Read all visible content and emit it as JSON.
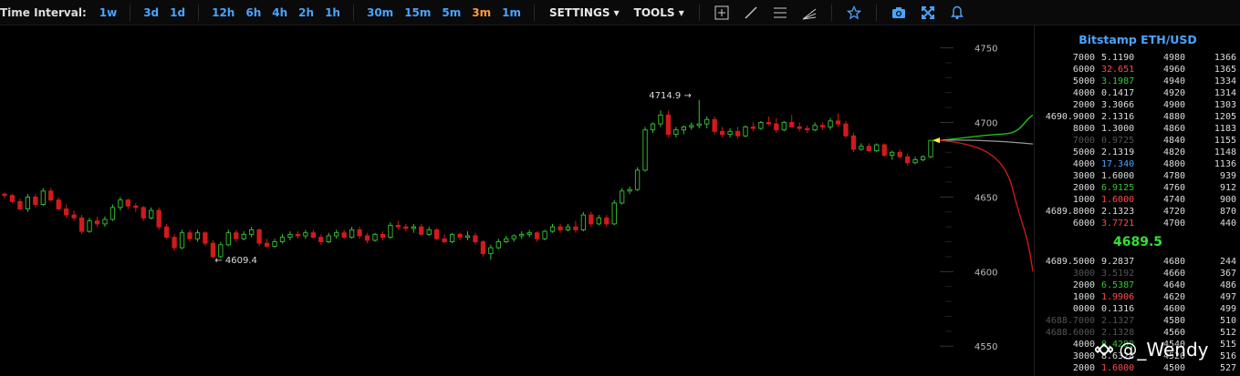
{
  "toolbar": {
    "label": "Time Interval:",
    "intervals": [
      "1w",
      "3d",
      "1d",
      "12h",
      "6h",
      "4h",
      "2h",
      "1h",
      "30m",
      "15m",
      "5m",
      "3m",
      "1m"
    ],
    "active_interval": "3m",
    "settings": "SETTINGS",
    "tools": "TOOLS",
    "tool_icons": [
      "crosshair-icon",
      "trendline-icon",
      "horizontal-lines-icon",
      "fan-icon",
      "star-icon",
      "camera-icon",
      "fullscreen-icon",
      "bell-icon"
    ]
  },
  "colors": {
    "up": "#35c435",
    "down": "#d11a1a",
    "accent": "#4aa3ff",
    "active": "#ff9a3c"
  },
  "chart_data": {
    "type": "candlestick",
    "y_ticks": [
      4750,
      4700,
      4650,
      4600,
      4550
    ],
    "ylim": [
      4530,
      4765
    ],
    "annotations": [
      {
        "text": "4714.9 →",
        "value": 4714.9,
        "kind": "high"
      },
      {
        "text": "← 4609.4",
        "value": 4609.4,
        "kind": "low"
      }
    ],
    "candles": [
      [
        4652,
        4653,
        4649,
        4651
      ],
      [
        4651,
        4652,
        4646,
        4647
      ],
      [
        4647,
        4649,
        4641,
        4642
      ],
      [
        4642,
        4652,
        4640,
        4650
      ],
      [
        4650,
        4652,
        4643,
        4645
      ],
      [
        4645,
        4656,
        4644,
        4654
      ],
      [
        4654,
        4656,
        4647,
        4648
      ],
      [
        4648,
        4650,
        4641,
        4642
      ],
      [
        4642,
        4645,
        4636,
        4638
      ],
      [
        4638,
        4641,
        4634,
        4636
      ],
      [
        4636,
        4638,
        4625,
        4627
      ],
      [
        4627,
        4636,
        4626,
        4634
      ],
      [
        4634,
        4637,
        4630,
        4632
      ],
      [
        4632,
        4637,
        4630,
        4635
      ],
      [
        4635,
        4645,
        4634,
        4643
      ],
      [
        4643,
        4650,
        4641,
        4648
      ],
      [
        4648,
        4649,
        4642,
        4644
      ],
      [
        4644,
        4646,
        4640,
        4643
      ],
      [
        4643,
        4644,
        4634,
        4636
      ],
      [
        4636,
        4643,
        4635,
        4641
      ],
      [
        4641,
        4643,
        4628,
        4630
      ],
      [
        4630,
        4632,
        4622,
        4623
      ],
      [
        4623,
        4625,
        4614,
        4616
      ],
      [
        4616,
        4628,
        4615,
        4626
      ],
      [
        4626,
        4628,
        4620,
        4622
      ],
      [
        4622,
        4628,
        4620,
        4626
      ],
      [
        4626,
        4627,
        4617,
        4619
      ],
      [
        4619,
        4621,
        4609,
        4610
      ],
      [
        4610,
        4620,
        4609,
        4618
      ],
      [
        4618,
        4628,
        4617,
        4626
      ],
      [
        4626,
        4628,
        4620,
        4622
      ],
      [
        4622,
        4627,
        4621,
        4625
      ],
      [
        4625,
        4630,
        4623,
        4628
      ],
      [
        4628,
        4629,
        4617,
        4619
      ],
      [
        4619,
        4622,
        4616,
        4617
      ],
      [
        4617,
        4622,
        4616,
        4620
      ],
      [
        4620,
        4625,
        4619,
        4623
      ],
      [
        4623,
        4627,
        4621,
        4625
      ],
      [
        4625,
        4627,
        4622,
        4624
      ],
      [
        4624,
        4628,
        4622,
        4626
      ],
      [
        4626,
        4628,
        4622,
        4623
      ],
      [
        4623,
        4625,
        4618,
        4620
      ],
      [
        4620,
        4626,
        4619,
        4624
      ],
      [
        4624,
        4628,
        4622,
        4626
      ],
      [
        4626,
        4628,
        4622,
        4623
      ],
      [
        4623,
        4630,
        4622,
        4628
      ],
      [
        4628,
        4630,
        4622,
        4624
      ],
      [
        4624,
        4626,
        4619,
        4621
      ],
      [
        4621,
        4626,
        4620,
        4625
      ],
      [
        4625,
        4627,
        4621,
        4623
      ],
      [
        4623,
        4633,
        4622,
        4631
      ],
      [
        4631,
        4634,
        4628,
        4630
      ],
      [
        4630,
        4632,
        4627,
        4629
      ],
      [
        4629,
        4632,
        4626,
        4630
      ],
      [
        4630,
        4632,
        4624,
        4625
      ],
      [
        4625,
        4630,
        4624,
        4628
      ],
      [
        4628,
        4629,
        4621,
        4622
      ],
      [
        4622,
        4625,
        4619,
        4620
      ],
      [
        4620,
        4626,
        4619,
        4625
      ],
      [
        4625,
        4626,
        4621,
        4623
      ],
      [
        4623,
        4627,
        4621,
        4624
      ],
      [
        4624,
        4626,
        4618,
        4620
      ],
      [
        4620,
        4621,
        4610,
        4612
      ],
      [
        4612,
        4618,
        4608,
        4616
      ],
      [
        4616,
        4622,
        4615,
        4620
      ],
      [
        4620,
        4624,
        4619,
        4622
      ],
      [
        4622,
        4625,
        4620,
        4624
      ],
      [
        4624,
        4627,
        4622,
        4625
      ],
      [
        4625,
        4628,
        4623,
        4626
      ],
      [
        4626,
        4627,
        4620,
        4622
      ],
      [
        4622,
        4628,
        4621,
        4627
      ],
      [
        4627,
        4632,
        4626,
        4630
      ],
      [
        4630,
        4632,
        4626,
        4628
      ],
      [
        4628,
        4632,
        4627,
        4630
      ],
      [
        4630,
        4634,
        4626,
        4628
      ],
      [
        4628,
        4640,
        4627,
        4638
      ],
      [
        4638,
        4640,
        4630,
        4632
      ],
      [
        4632,
        4638,
        4631,
        4636
      ],
      [
        4636,
        4638,
        4630,
        4632
      ],
      [
        4632,
        4648,
        4631,
        4646
      ],
      [
        4646,
        4656,
        4645,
        4654
      ],
      [
        4654,
        4657,
        4652,
        4655
      ],
      [
        4655,
        4670,
        4654,
        4668
      ],
      [
        4668,
        4697,
        4667,
        4695
      ],
      [
        4695,
        4700,
        4693,
        4699
      ],
      [
        4699,
        4708,
        4697,
        4705
      ],
      [
        4705,
        4708,
        4690,
        4692
      ],
      [
        4692,
        4697,
        4690,
        4695
      ],
      [
        4695,
        4698,
        4692,
        4697
      ],
      [
        4697,
        4700,
        4695,
        4698
      ],
      [
        4698,
        4715,
        4696,
        4699
      ],
      [
        4699,
        4704,
        4696,
        4702
      ],
      [
        4702,
        4704,
        4692,
        4694
      ],
      [
        4694,
        4697,
        4690,
        4692
      ],
      [
        4692,
        4696,
        4690,
        4694
      ],
      [
        4694,
        4697,
        4689,
        4691
      ],
      [
        4691,
        4698,
        4690,
        4697
      ],
      [
        4697,
        4700,
        4694,
        4696
      ],
      [
        4696,
        4701,
        4695,
        4700
      ],
      [
        4700,
        4704,
        4698,
        4699
      ],
      [
        4699,
        4703,
        4693,
        4695
      ],
      [
        4695,
        4701,
        4694,
        4700
      ],
      [
        4700,
        4705,
        4698,
        4697
      ],
      [
        4697,
        4700,
        4694,
        4696
      ],
      [
        4696,
        4698,
        4693,
        4695
      ],
      [
        4695,
        4700,
        4694,
        4698
      ],
      [
        4698,
        4700,
        4695,
        4697
      ],
      [
        4697,
        4703,
        4695,
        4701
      ],
      [
        4701,
        4706,
        4697,
        4699
      ],
      [
        4699,
        4701,
        4690,
        4691
      ],
      [
        4691,
        4693,
        4680,
        4682
      ],
      [
        4682,
        4686,
        4681,
        4684
      ],
      [
        4684,
        4686,
        4680,
        4681
      ],
      [
        4681,
        4686,
        4680,
        4685
      ],
      [
        4685,
        4686,
        4677,
        4678
      ],
      [
        4678,
        4681,
        4675,
        4680
      ],
      [
        4680,
        4682,
        4676,
        4677
      ],
      [
        4677,
        4679,
        4671,
        4673
      ],
      [
        4673,
        4677,
        4672,
        4675
      ],
      [
        4675,
        4678,
        4674,
        4677
      ],
      [
        4677,
        4688,
        4676,
        4688
      ]
    ],
    "depth_bids": "green",
    "depth_asks": "red"
  },
  "orderbook": {
    "title": "Bitstamp ETH/USD",
    "mid_price": "4689.5",
    "asks": [
      {
        "cum": "7000",
        "amt": "5.1190",
        "px": "4980",
        "sum": "1366",
        "amt_color": "#ddd"
      },
      {
        "cum": "6000",
        "amt": "32.651",
        "px": "4960",
        "sum": "1365",
        "amt_color": "#ff4a4a"
      },
      {
        "cum": "5000",
        "amt": "3.1987",
        "px": "4940",
        "sum": "1334",
        "amt_color": "#35c435"
      },
      {
        "cum": "4000",
        "amt": "0.1417",
        "px": "4920",
        "sum": "1314",
        "amt_color": "#ddd"
      },
      {
        "cum": "2000",
        "amt": "3.3066",
        "px": "4900",
        "sum": "1303",
        "amt_color": "#ddd"
      },
      {
        "cum": "4690.9000",
        "amt": "2.1316",
        "px": "4880",
        "sum": "1205",
        "amt_color": "#ddd"
      },
      {
        "cum": "8000",
        "amt": "1.3000",
        "px": "4860",
        "sum": "1183",
        "amt_color": "#ddd"
      },
      {
        "cum": "7000",
        "amt": "0.9725",
        "px": "4840",
        "sum": "1155",
        "amt_color": "#555",
        "dim": true
      },
      {
        "cum": "5000",
        "amt": "2.1319",
        "px": "4820",
        "sum": "1148",
        "amt_color": "#ddd"
      },
      {
        "cum": "4000",
        "amt": "17.340",
        "px": "4800",
        "sum": "1136",
        "amt_color": "#4aa3ff"
      },
      {
        "cum": "3000",
        "amt": "1.6000",
        "px": "4780",
        "sum": "939",
        "amt_color": "#ddd"
      },
      {
        "cum": "2000",
        "amt": "6.9125",
        "px": "4760",
        "sum": "912",
        "amt_color": "#35c435"
      },
      {
        "cum": "1000",
        "amt": "1.6000",
        "px": "4740",
        "sum": "900",
        "amt_color": "#ff4a4a"
      },
      {
        "cum": "4689.8000",
        "amt": "2.1323",
        "px": "4720",
        "sum": "870",
        "amt_color": "#ddd"
      },
      {
        "cum": "6000",
        "amt": "3.7721",
        "px": "4700",
        "sum": "440",
        "amt_color": "#ff4a4a"
      }
    ],
    "bids": [
      {
        "cum": "4689.5000",
        "amt": "9.2837",
        "px": "4680",
        "sum": "244",
        "amt_color": "#ddd"
      },
      {
        "cum": "3000",
        "amt": "3.5192",
        "px": "4660",
        "sum": "367",
        "amt_color": "#555",
        "dim": true
      },
      {
        "cum": "2000",
        "amt": "6.5387",
        "px": "4640",
        "sum": "486",
        "amt_color": "#35c435"
      },
      {
        "cum": "1000",
        "amt": "1.9906",
        "px": "4620",
        "sum": "497",
        "amt_color": "#ff4a4a"
      },
      {
        "cum": "0000",
        "amt": "0.1316",
        "px": "4600",
        "sum": "499",
        "amt_color": "#ddd"
      },
      {
        "cum": "4688.7000",
        "amt": "2.1327",
        "px": "4580",
        "sum": "510",
        "amt_color": "#555",
        "dim": true
      },
      {
        "cum": "4688.6000",
        "amt": "2.1328",
        "px": "4560",
        "sum": "512",
        "amt_color": "#555",
        "dim": true
      },
      {
        "cum": "4000",
        "amt": "8.4289",
        "px": "4540",
        "sum": "515",
        "amt_color": "#35c435"
      },
      {
        "cum": "3000",
        "amt": "8.6328",
        "px": "4520",
        "sum": "516",
        "amt_color": "#ddd"
      },
      {
        "cum": "2000",
        "amt": "1.6000",
        "px": "4500",
        "sum": "527",
        "amt_color": "#ff4a4a"
      }
    ]
  },
  "watermark": "@_Wendy"
}
